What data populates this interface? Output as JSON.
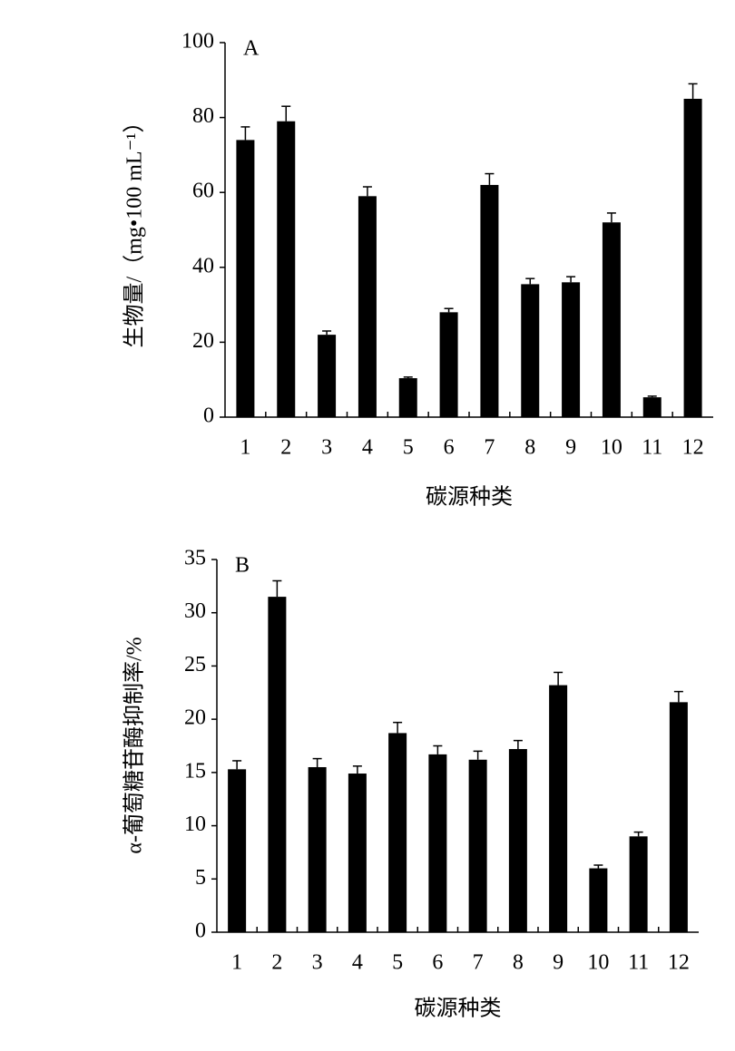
{
  "chart_data": [
    {
      "type": "bar",
      "panel_label": "A",
      "y_label": "生物量/（mg•100 mL⁻¹）",
      "x_label": "碳源种类",
      "categories": [
        "1",
        "2",
        "3",
        "4",
        "5",
        "6",
        "7",
        "8",
        "9",
        "10",
        "11",
        "12"
      ],
      "values": [
        74,
        79,
        22,
        59,
        10.4,
        28,
        62,
        35.5,
        36,
        52,
        5.3,
        85
      ],
      "errors": [
        3.5,
        4,
        1,
        2.5,
        0.3,
        1,
        3,
        1.5,
        1.5,
        2.5,
        0.3,
        4
      ],
      "color": "#000000",
      "ylim": [
        0,
        100
      ],
      "yticks": [
        0,
        20,
        40,
        60,
        80,
        100
      ]
    },
    {
      "type": "bar",
      "panel_label": "B",
      "y_label": "α-葡萄糖苷酶抑制率/%",
      "x_label": "碳源种类",
      "categories": [
        "1",
        "2",
        "3",
        "4",
        "5",
        "6",
        "7",
        "8",
        "9",
        "10",
        "11",
        "12"
      ],
      "values": [
        15.3,
        31.5,
        15.5,
        14.9,
        18.7,
        16.7,
        16.2,
        17.2,
        23.2,
        6,
        9,
        21.6
      ],
      "errors": [
        0.8,
        1.5,
        0.8,
        0.7,
        1,
        0.8,
        0.8,
        0.8,
        1.2,
        0.3,
        0.4,
        1
      ],
      "color": "#000000",
      "ylim": [
        0,
        35
      ],
      "yticks": [
        0,
        5,
        10,
        15,
        20,
        25,
        30,
        35
      ]
    }
  ]
}
